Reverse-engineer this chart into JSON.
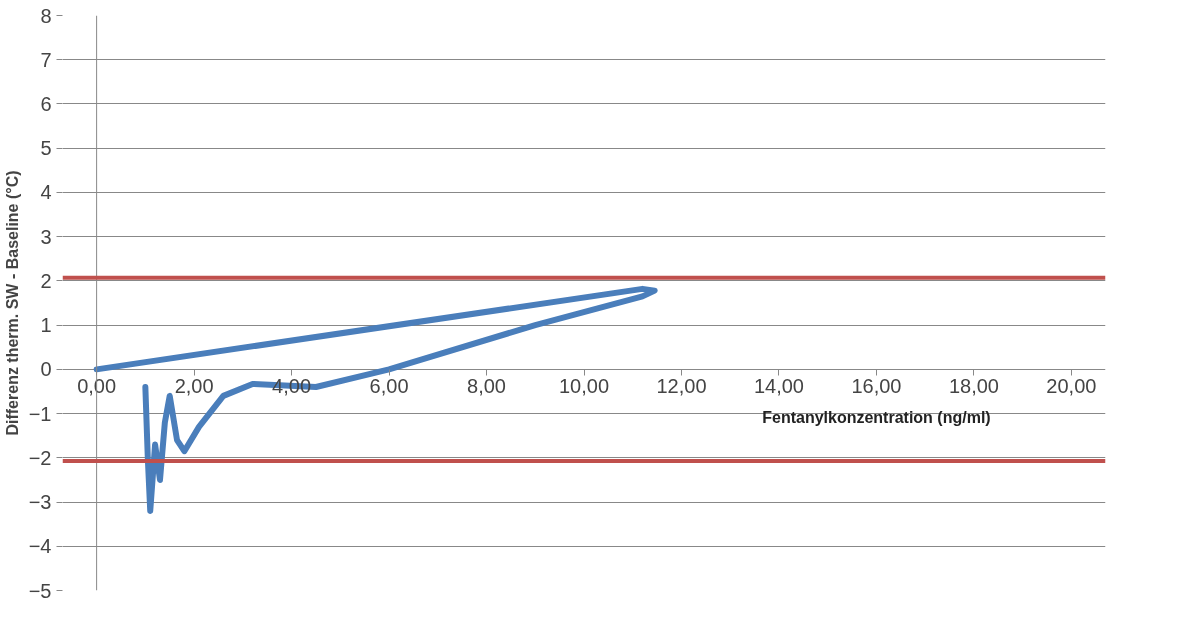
{
  "chart_data": {
    "type": "line",
    "xlabel": "Fentanylkonzentration (ng/ml)",
    "ylabel": "Differenz therm. SW - Baseline (°C)",
    "xlim": [
      0,
      20
    ],
    "xticks": [
      {
        "value": 0,
        "label": "0,00"
      },
      {
        "value": 2,
        "label": "2,00"
      },
      {
        "value": 4,
        "label": "4,00"
      },
      {
        "value": 6,
        "label": "6,00"
      },
      {
        "value": 8,
        "label": "8,00"
      },
      {
        "value": 10,
        "label": "10,00"
      },
      {
        "value": 12,
        "label": "12,00"
      },
      {
        "value": 14,
        "label": "14,00"
      },
      {
        "value": 16,
        "label": "16,00"
      },
      {
        "value": 18,
        "label": "18,00"
      },
      {
        "value": 20,
        "label": "20,00"
      }
    ],
    "ylim": [
      -5,
      8
    ],
    "yticks": [
      -5,
      -4,
      -3,
      -2,
      -1,
      0,
      1,
      2,
      3,
      4,
      5,
      6,
      7,
      8
    ],
    "grid": "y",
    "marker": "none",
    "line_style": "solid",
    "series": [
      {
        "color": "#4a7ebb",
        "x": [
          0,
          11.2,
          11.45,
          11.2,
          9,
          6,
          4.5,
          3.2,
          2.6,
          2.1,
          1.8,
          1.65,
          1.5,
          1.4,
          1.3,
          1.2,
          1.1,
          1.05,
          1.0
        ],
        "values": [
          0,
          1.82,
          1.78,
          1.65,
          1.0,
          0.0,
          -0.4,
          -0.33,
          -0.6,
          -1.3,
          -1.85,
          -1.6,
          -0.6,
          -1.2,
          -2.5,
          -1.7,
          -3.2,
          -2.0,
          -0.4
        ]
      }
    ],
    "ref_lines": [
      {
        "axis": "y",
        "value": 2.07,
        "color": "#c0504d"
      },
      {
        "axis": "y",
        "value": -2.07,
        "color": "#c0504d"
      }
    ]
  }
}
